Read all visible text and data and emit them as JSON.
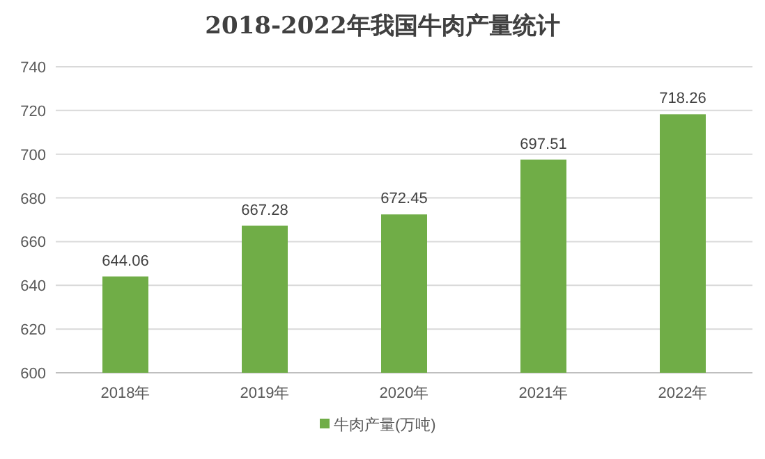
{
  "chart_data": {
    "type": "bar",
    "title": "2018-2022年我国牛肉产量统计",
    "categories": [
      "2018年",
      "2019年",
      "2020年",
      "2021年",
      "2022年"
    ],
    "series": [
      {
        "name": "牛肉产量(万吨)",
        "color": "#70ad47",
        "values": [
          644.06,
          667.28,
          672.45,
          697.51,
          718.26
        ]
      }
    ],
    "ylim": [
      600,
      740
    ],
    "yticks": [
      600,
      620,
      640,
      660,
      680,
      700,
      720,
      740
    ],
    "grid": "y",
    "legend": "bottom",
    "data_labels": true
  }
}
